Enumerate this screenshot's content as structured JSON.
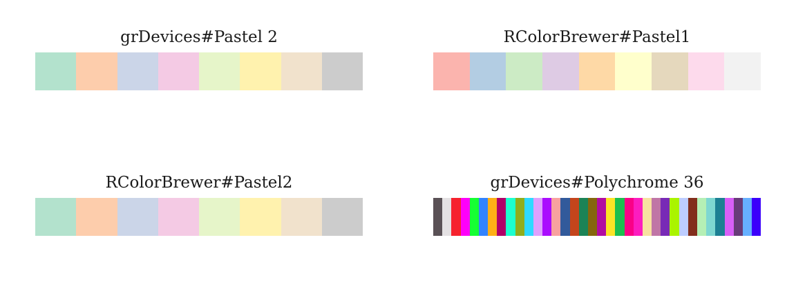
{
  "palettes": [
    {
      "title": "grDevices#Pastel 2",
      "colors": [
        "#B3E2CD",
        "#FDCDAC",
        "#CBD5E8",
        "#F4CAE4",
        "#E6F5C9",
        "#FFF2AE",
        "#F1E2CC",
        "#CCCCCC"
      ]
    },
    {
      "title": "RColorBrewer#Pastel1",
      "colors": [
        "#FBB4AE",
        "#B3CDE3",
        "#CCEBC5",
        "#DECBE4",
        "#FED9A6",
        "#FFFFCC",
        "#E5D8BD",
        "#FDDAEC",
        "#F2F2F2"
      ]
    },
    {
      "title": "RColorBrewer#Pastel2",
      "colors": [
        "#B3E2CD",
        "#FDCDAC",
        "#CBD5E8",
        "#F4CAE4",
        "#E6F5C9",
        "#FFF2AE",
        "#F1E2CC",
        "#CCCCCC"
      ]
    },
    {
      "title": "grDevices#Polychrome 36",
      "colors": [
        "#5A5156",
        "#E4E1E3",
        "#F6222E",
        "#FE00FA",
        "#16FF32",
        "#3283FE",
        "#FEAF16",
        "#B00068",
        "#1CFFCE",
        "#90AD1C",
        "#2ED9FF",
        "#DEA0FD",
        "#AA0DFE",
        "#F8A19F",
        "#325A9B",
        "#C4451C",
        "#1C8356",
        "#85660D",
        "#B10DA1",
        "#FBE426",
        "#1CBE4F",
        "#FA0087",
        "#FC1CBF",
        "#F7E1A0",
        "#C075A6",
        "#782AB6",
        "#AAF400",
        "#BDCDFF",
        "#822E1C",
        "#B5EFB5",
        "#7ED7D1",
        "#1C7F93",
        "#D85FF7",
        "#683B79",
        "#66B0FF",
        "#3B00FB"
      ]
    }
  ]
}
